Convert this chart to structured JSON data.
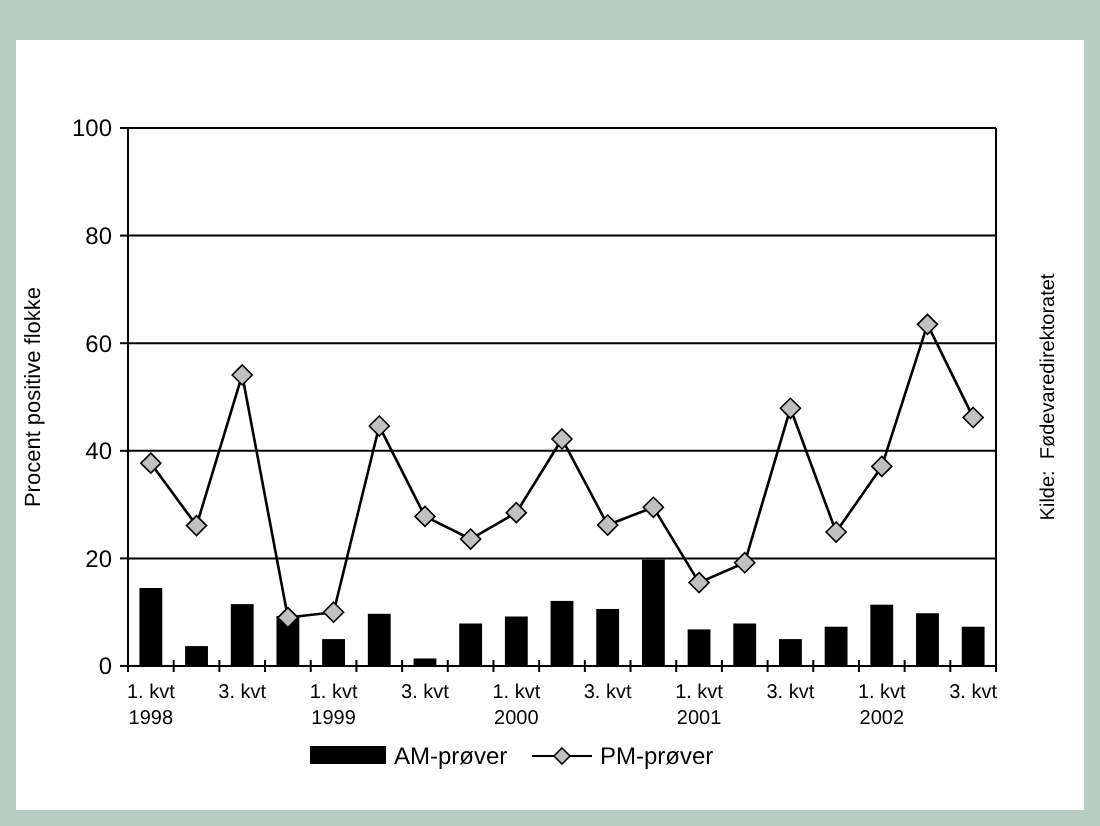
{
  "chart_data": {
    "type": "bar",
    "ylabel": "Procent positive flokke",
    "annotations": [
      "Kilde:  Fødevaredirektoratet"
    ],
    "categories": [
      "1. kvt\n1998",
      null,
      "3. kvt",
      null,
      "1. kvt\n1999",
      null,
      "3. kvt",
      null,
      "1. kvt\n2000",
      null,
      "3. kvt",
      null,
      "1. kvt\n2001",
      null,
      "3. kvt",
      null,
      "1. kvt\n2002",
      null,
      "3. kvt"
    ],
    "series": [
      {
        "name": "AM-prøver",
        "color": "#000000",
        "values": [
          14.5,
          3.7,
          11.5,
          9.3,
          5,
          9.7,
          1.4,
          7.9,
          9.2,
          12.1,
          10.6,
          19.8,
          6.8,
          7.9,
          5,
          7.3,
          11.4,
          9.8,
          7.3
        ]
      },
      {
        "name": "PM-prøver",
        "type": "line",
        "color": "#000000",
        "marker": "diamond",
        "values": [
          37.7,
          26.1,
          54.1,
          9,
          10,
          44.6,
          27.8,
          23.6,
          28.5,
          42.2,
          26.2,
          29.5,
          15.5,
          19.2,
          47.9,
          24.9,
          37.1,
          63.5,
          46.2
        ]
      }
    ],
    "ylim": [
      0,
      100
    ],
    "yticks": [
      0,
      20,
      40,
      60,
      80,
      100
    ],
    "grid": "y",
    "legend": "bottom"
  }
}
